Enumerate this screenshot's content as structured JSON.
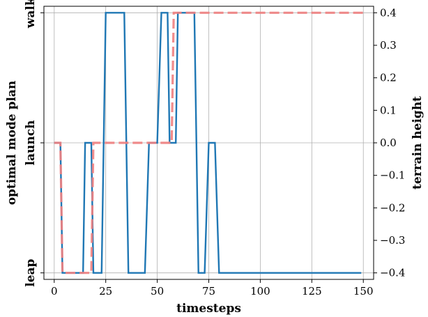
{
  "chart_data": {
    "type": "line",
    "xlabel": "timesteps",
    "ylabel_left": "optimal mode plan",
    "ylabel_right": "terrain height",
    "xlim": [
      -5,
      155
    ],
    "x_ticks": [
      0,
      25,
      50,
      75,
      100,
      125,
      150
    ],
    "left_axis": {
      "categories": [
        "leap",
        "launch",
        "walk"
      ],
      "ylim": [
        -0.42,
        0.42
      ]
    },
    "right_axis": {
      "ylim": [
        -0.42,
        0.42
      ],
      "ticks": [
        -0.4,
        -0.3,
        -0.2,
        -0.1,
        0.0,
        0.1,
        0.2,
        0.3,
        0.4
      ],
      "tick_labels": [
        "−0.4",
        "−0.3",
        "−0.2",
        "−0.1",
        "0.0",
        "0.1",
        "0.2",
        "0.3",
        "0.4"
      ]
    },
    "grid": true,
    "series": [
      {
        "axis": "left",
        "color": "#1f77b4",
        "style": "solid",
        "points": [
          [
            0,
            "launch"
          ],
          [
            3,
            "launch"
          ],
          [
            4,
            "leap"
          ],
          [
            14,
            "leap"
          ],
          [
            15,
            "launch"
          ],
          [
            18,
            "launch"
          ],
          [
            19,
            "leap"
          ],
          [
            23,
            "leap"
          ],
          [
            25,
            "walk"
          ],
          [
            34,
            "walk"
          ],
          [
            36,
            "leap"
          ],
          [
            44,
            "leap"
          ],
          [
            46,
            "launch"
          ],
          [
            50,
            "launch"
          ],
          [
            52,
            "walk"
          ],
          [
            55,
            "walk"
          ],
          [
            56,
            "launch"
          ],
          [
            59,
            "launch"
          ],
          [
            60,
            "walk"
          ],
          [
            68,
            "walk"
          ],
          [
            70,
            "leap"
          ],
          [
            73,
            "leap"
          ],
          [
            75,
            "launch"
          ],
          [
            78,
            "launch"
          ],
          [
            80,
            "leap"
          ],
          [
            149,
            "leap"
          ]
        ]
      },
      {
        "axis": "right",
        "color": "#f08080",
        "style": "dashed",
        "points": [
          [
            0,
            0.0
          ],
          [
            3,
            0.0
          ],
          [
            4,
            -0.4
          ],
          [
            18,
            -0.4
          ],
          [
            19,
            0.0
          ],
          [
            57,
            0.0
          ],
          [
            58,
            0.4
          ],
          [
            150,
            0.4
          ]
        ]
      }
    ]
  }
}
